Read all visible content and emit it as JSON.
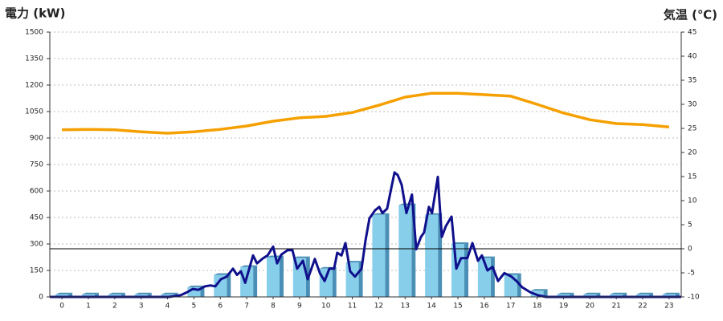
{
  "chart_data": {
    "type": "combo",
    "title": "電力 (kW)",
    "y2_title": "気温 (℃)",
    "title_color": "#1a6cb0",
    "y2_title_color": "#f08c1e",
    "xlim": [
      -0.46,
      23.46
    ],
    "xticks": [
      0,
      1,
      2,
      3,
      4,
      5,
      6,
      7,
      8,
      9,
      10,
      11,
      12,
      13,
      14,
      15,
      16,
      17,
      18,
      19,
      20,
      21,
      22,
      23
    ],
    "ylim": [
      0,
      1500
    ],
    "yticks": [
      0,
      150,
      300,
      450,
      600,
      750,
      900,
      1050,
      1200,
      1350,
      1500
    ],
    "y2lim": [
      -10,
      45
    ],
    "y2ticks": [
      -10,
      -5,
      0,
      5,
      10,
      15,
      20,
      25,
      30,
      35,
      40,
      45
    ],
    "grid": true,
    "y2_zero_line": true,
    "series": [
      {
        "type": "bar",
        "color": "#87ceeb",
        "side_color": "#4a8fb5",
        "x": [
          0,
          1,
          2,
          3,
          4,
          5,
          6,
          7,
          8,
          9,
          10,
          11,
          12,
          13,
          14,
          15,
          16,
          17,
          18,
          19,
          20,
          21,
          22,
          23
        ],
        "values": [
          15,
          15,
          15,
          15,
          15,
          55,
          125,
          170,
          225,
          220,
          160,
          195,
          465,
          520,
          465,
          300,
          220,
          125,
          35,
          15,
          15,
          15,
          15,
          15
        ]
      },
      {
        "type": "line",
        "color": "#10108c",
        "width": 3,
        "x": [
          -0.46,
          4.05,
          4.5,
          4.72,
          4.96,
          5.17,
          5.42,
          5.63,
          5.81,
          6.02,
          6.24,
          6.48,
          6.63,
          6.78,
          6.94,
          7.24,
          7.39,
          7.61,
          7.79,
          8.0,
          8.15,
          8.31,
          8.55,
          8.73,
          8.91,
          9.13,
          9.31,
          9.58,
          9.77,
          9.95,
          10.13,
          10.31,
          10.43,
          10.59,
          10.74,
          10.92,
          11.1,
          11.35,
          11.5,
          11.65,
          11.86,
          12.02,
          12.14,
          12.32,
          12.5,
          12.6,
          12.72,
          12.87,
          13.05,
          13.26,
          13.42,
          13.6,
          13.72,
          13.9,
          14.02,
          14.24,
          14.39,
          14.54,
          14.76,
          14.94,
          15.12,
          15.36,
          15.55,
          15.76,
          15.91,
          16.12,
          16.31,
          16.52,
          16.76,
          17.03,
          17.22,
          17.43,
          17.74,
          18.04,
          18.34,
          23.46
        ],
        "values": [
          0,
          0,
          10,
          25,
          45,
          40,
          60,
          65,
          60,
          100,
          115,
          160,
          125,
          145,
          80,
          235,
          190,
          218,
          235,
          285,
          190,
          240,
          265,
          265,
          160,
          205,
          100,
          215,
          135,
          90,
          160,
          160,
          250,
          235,
          305,
          145,
          115,
          160,
          320,
          445,
          490,
          510,
          475,
          500,
          635,
          705,
          690,
          635,
          475,
          580,
          270,
          340,
          365,
          510,
          475,
          680,
          340,
          400,
          455,
          160,
          220,
          220,
          305,
          205,
          235,
          150,
          170,
          90,
          135,
          115,
          90,
          55,
          27,
          9,
          0,
          0
        ]
      },
      {
        "type": "line",
        "axis": "y2",
        "color": "#f5a000",
        "width": 3.5,
        "x": [
          0,
          1,
          2,
          3,
          4,
          5,
          6,
          7,
          8,
          9,
          10,
          11,
          12,
          13,
          14,
          15,
          16,
          17,
          18,
          19,
          20,
          21,
          22,
          23
        ],
        "values": [
          24.7,
          24.8,
          24.7,
          24.3,
          24.0,
          24.3,
          24.8,
          25.5,
          26.5,
          27.2,
          27.5,
          28.3,
          29.8,
          31.5,
          32.3,
          32.3,
          32.0,
          31.7,
          30.0,
          28.2,
          26.8,
          26.0,
          25.8,
          25.3
        ]
      }
    ]
  }
}
